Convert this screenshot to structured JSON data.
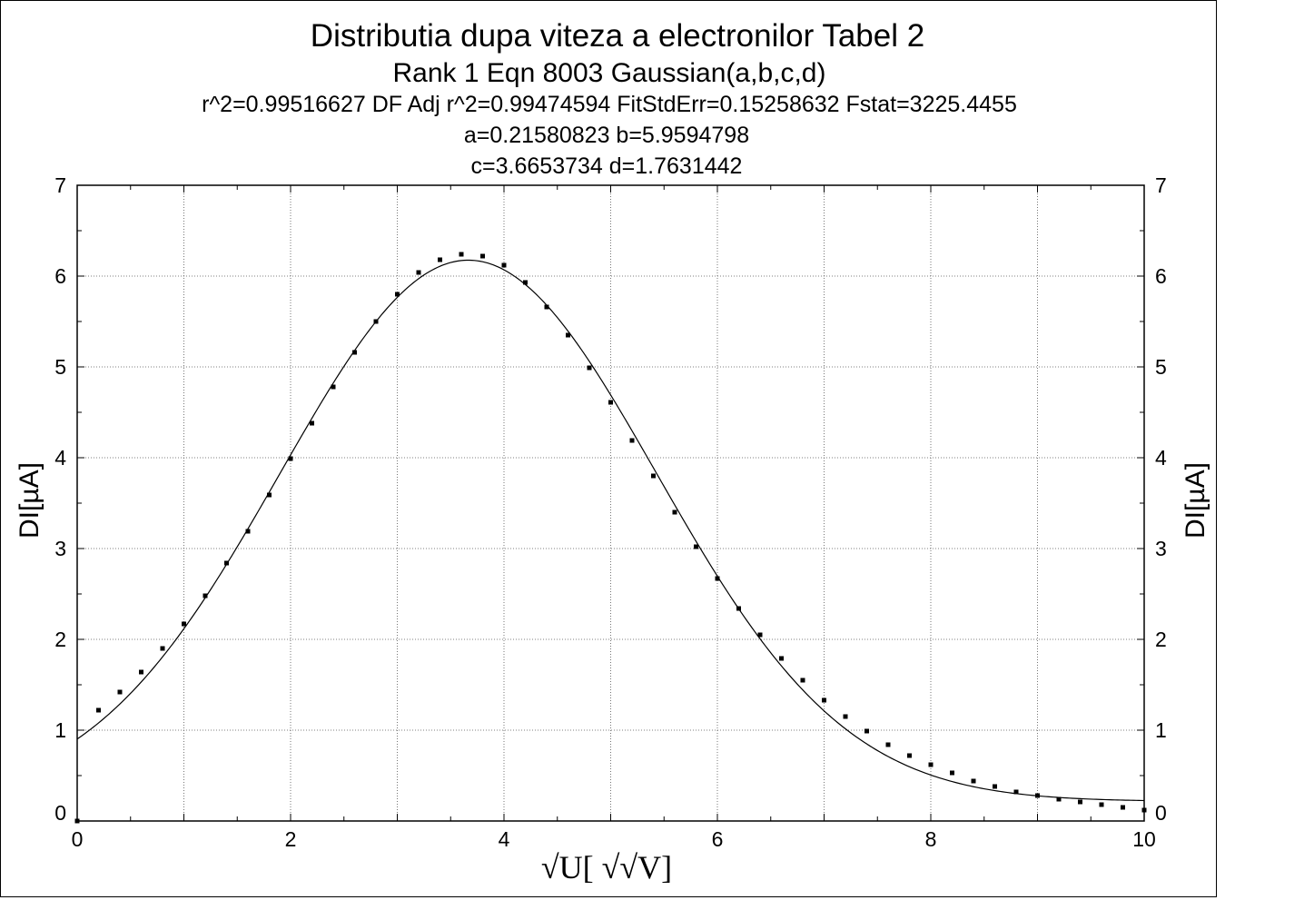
{
  "chart_data": {
    "type": "scatter",
    "title": "Distributia dupa viteza a electronilor Tabel 2",
    "subtitle_lines": [
      "Rank 1  Eqn 8003  Gaussian(a,b,c,d)",
      "r^2=0.99516627  DF Adj r^2=0.99474594  FitStdErr=0.15258632  Fstat=3225.4455",
      "a=0.21580823 b=5.9594798",
      "c=3.6653734 d=1.7631442"
    ],
    "xlabel": "√U[√√V]",
    "xlabel_display": "√U[ √√V]",
    "ylabel": "DI[µA]",
    "xlim": [
      0,
      10
    ],
    "ylim": [
      0,
      7
    ],
    "xticks": [
      0,
      2,
      4,
      6,
      8,
      10
    ],
    "yticks": [
      0,
      1,
      2,
      3,
      4,
      5,
      6,
      7
    ],
    "grid": true,
    "fit": {
      "equation": "Gaussian",
      "a": 0.21580823,
      "b": 5.9594798,
      "c": 3.6653734,
      "d": 1.7631442
    },
    "points": {
      "x": [
        0,
        0.2,
        0.4,
        0.6,
        0.8,
        1.0,
        1.2,
        1.4,
        1.6,
        1.8,
        2.0,
        2.2,
        2.4,
        2.6,
        2.8,
        3.0,
        3.2,
        3.4,
        3.6,
        3.8,
        4.0,
        4.2,
        4.4,
        4.6,
        4.8,
        5.0,
        5.2,
        5.4,
        5.6,
        5.8,
        6.0,
        6.2,
        6.4,
        6.6,
        6.8,
        7.0,
        7.2,
        7.4,
        7.6,
        7.8,
        8.0,
        8.2,
        8.4,
        8.6,
        8.8,
        9.0,
        9.2,
        9.4,
        9.6,
        9.8,
        10.0
      ],
      "y": [
        0.0,
        1.22,
        1.42,
        1.64,
        1.9,
        2.17,
        2.48,
        2.84,
        3.19,
        3.59,
        3.99,
        4.38,
        4.78,
        5.16,
        5.5,
        5.8,
        6.04,
        6.18,
        6.24,
        6.22,
        6.12,
        5.93,
        5.66,
        5.35,
        4.99,
        4.61,
        4.19,
        3.8,
        3.4,
        3.02,
        2.67,
        2.34,
        2.05,
        1.79,
        1.55,
        1.33,
        1.15,
        0.99,
        0.84,
        0.72,
        0.62,
        0.53,
        0.44,
        0.38,
        0.32,
        0.28,
        0.24,
        0.21,
        0.18,
        0.15,
        0.12
      ]
    }
  }
}
